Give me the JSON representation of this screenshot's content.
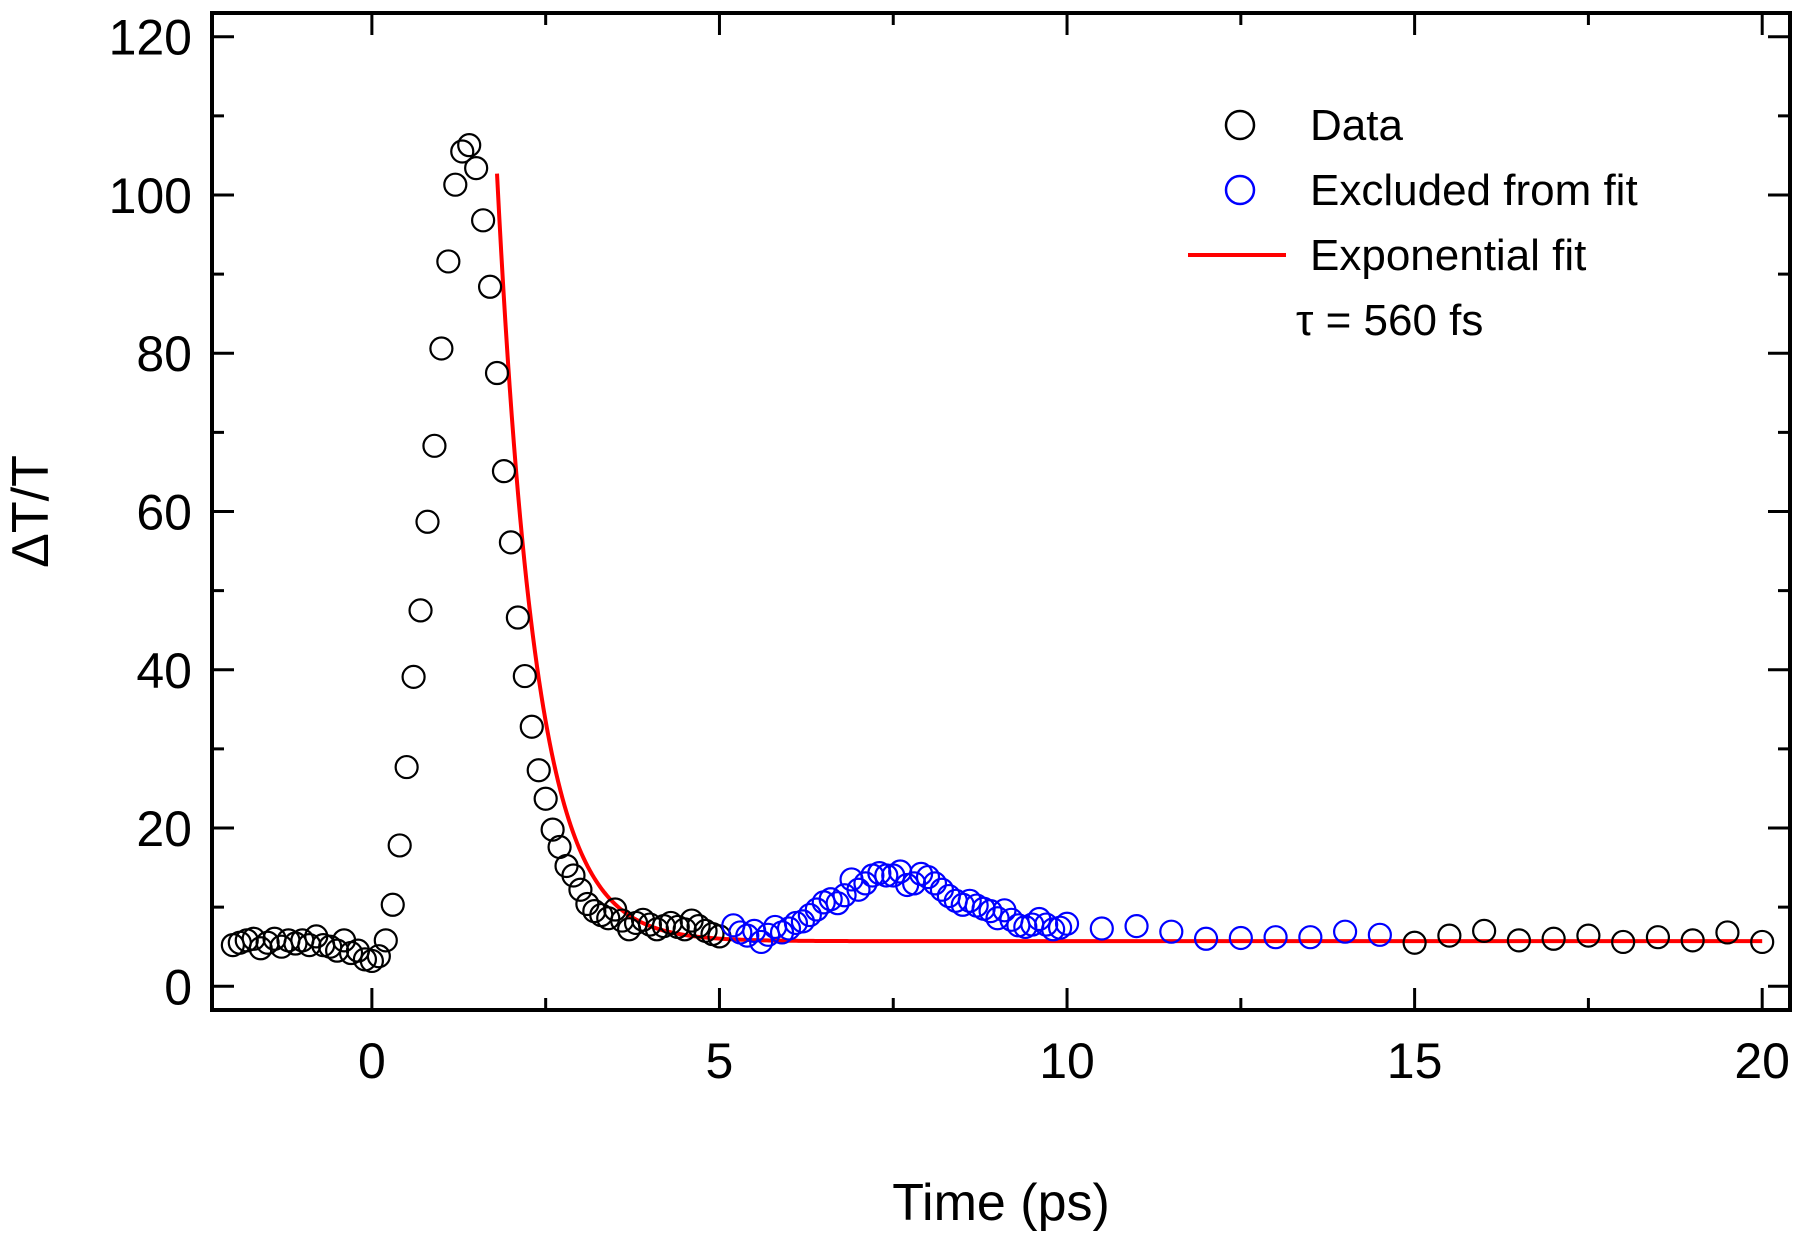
{
  "chart_data": {
    "type": "scatter",
    "title": "",
    "xlabel": "Time (ps)",
    "ylabel": "ΔT/T",
    "xlim": [
      -2.3,
      20.4
    ],
    "ylim": [
      -3,
      123
    ],
    "xticks": [
      0,
      5,
      10,
      15,
      20
    ],
    "yticks": [
      0,
      20,
      40,
      60,
      80,
      100,
      120
    ],
    "tick_labels_x": [
      "0",
      "5",
      "10",
      "15",
      "20"
    ],
    "tick_labels_y": [
      "0",
      "20",
      "40",
      "60",
      "80",
      "100",
      "120"
    ],
    "grid": false,
    "legend": {
      "placement": "top-right",
      "entries": [
        {
          "label": "Data",
          "marker": "open-circle",
          "color": "#000000"
        },
        {
          "label": "Excluded from fit",
          "marker": "open-circle",
          "color": "#0000ff"
        },
        {
          "label": "Exponential fit",
          "marker": "line",
          "color": "#ff0000"
        }
      ]
    },
    "annotation": "τ = 560 fs",
    "series": [
      {
        "name": "Data",
        "kind": "scatter",
        "color": "#000000",
        "x": [
          -2.0,
          -1.9,
          -1.8,
          -1.7,
          -1.6,
          -1.5,
          -1.4,
          -1.3,
          -1.2,
          -1.1,
          -1.0,
          -0.9,
          -0.8,
          -0.7,
          -0.6,
          -0.5,
          -0.4,
          -0.3,
          -0.2,
          -0.1,
          0.0,
          0.1,
          0.2,
          0.3,
          0.4,
          0.5,
          0.6,
          0.7,
          0.8,
          0.9,
          1.0,
          1.1,
          1.2,
          1.3,
          1.4,
          1.5,
          1.6,
          1.7,
          1.8,
          1.9,
          2.0,
          2.1,
          2.2,
          2.3,
          2.4,
          2.5,
          2.6,
          2.7,
          2.8,
          2.9,
          3.0,
          3.1,
          3.2,
          3.3,
          3.4,
          3.5,
          3.6,
          3.7,
          3.8,
          3.9,
          4.0,
          4.1,
          4.2,
          4.3,
          4.4,
          4.5,
          4.6,
          4.7,
          4.8,
          4.9,
          5.0,
          15.0,
          15.5,
          16.0,
          16.5,
          17.0,
          17.5,
          18.0,
          18.5,
          19.0,
          19.5,
          20.0
        ],
        "y": [
          5.2,
          5.5,
          5.8,
          6.0,
          4.8,
          5.5,
          6.0,
          5.0,
          5.8,
          5.4,
          5.8,
          5.2,
          6.3,
          5.2,
          5.0,
          4.5,
          5.8,
          4.2,
          4.5,
          3.4,
          3.2,
          3.8,
          5.8,
          10.3,
          17.8,
          27.7,
          39.1,
          47.5,
          58.7,
          68.3,
          80.6,
          91.6,
          101.3,
          105.5,
          106.3,
          103.4,
          96.8,
          88.4,
          77.5,
          65.1,
          56.1,
          46.6,
          39.2,
          32.8,
          27.3,
          23.7,
          19.8,
          17.6,
          15.2,
          14.0,
          12.2,
          10.4,
          9.5,
          9.0,
          8.6,
          9.7,
          8.3,
          7.2,
          8.0,
          8.4,
          7.8,
          7.2,
          7.6,
          8.0,
          7.5,
          7.2,
          8.3,
          7.6,
          7.0,
          6.6,
          6.3,
          5.5,
          6.4,
          7.0,
          5.8,
          6.0,
          6.4,
          5.6,
          6.2,
          5.8,
          6.8,
          5.6
        ]
      },
      {
        "name": "Excluded from fit",
        "kind": "scatter",
        "color": "#0000ff",
        "x": [
          5.2,
          5.3,
          5.4,
          5.5,
          5.6,
          5.7,
          5.8,
          5.9,
          6.0,
          6.1,
          6.2,
          6.3,
          6.4,
          6.5,
          6.6,
          6.7,
          6.8,
          6.9,
          7.0,
          7.1,
          7.2,
          7.3,
          7.4,
          7.5,
          7.6,
          7.7,
          7.8,
          7.9,
          8.0,
          8.1,
          8.2,
          8.3,
          8.4,
          8.5,
          8.6,
          8.7,
          8.8,
          8.9,
          9.0,
          9.1,
          9.2,
          9.3,
          9.4,
          9.5,
          9.6,
          9.7,
          9.8,
          9.9,
          10.0,
          10.5,
          11.0,
          11.5,
          12.0,
          12.5,
          13.0,
          13.5,
          14.0,
          14.5
        ],
        "y": [
          7.7,
          6.8,
          6.4,
          7.0,
          5.6,
          6.5,
          7.5,
          6.8,
          7.3,
          8.0,
          8.2,
          9.0,
          9.7,
          10.6,
          11.0,
          10.5,
          11.5,
          13.5,
          12.2,
          13.0,
          14.0,
          14.3,
          14.0,
          14.0,
          14.5,
          12.8,
          13.0,
          14.2,
          13.8,
          13.0,
          12.2,
          11.4,
          10.8,
          10.3,
          10.8,
          10.2,
          9.8,
          9.5,
          8.6,
          9.6,
          8.4,
          7.7,
          7.5,
          7.8,
          8.5,
          7.8,
          7.2,
          7.4,
          7.9,
          7.3,
          7.6,
          6.9,
          6.0,
          6.1,
          6.2,
          6.2,
          6.9,
          6.5
        ]
      },
      {
        "name": "Exponential fit",
        "kind": "line",
        "color": "#ff0000",
        "function": "y = 5.7 + 97.0 * exp(-(x - 1.8) / 0.56)",
        "x_range": [
          1.8,
          20.0
        ]
      }
    ]
  }
}
